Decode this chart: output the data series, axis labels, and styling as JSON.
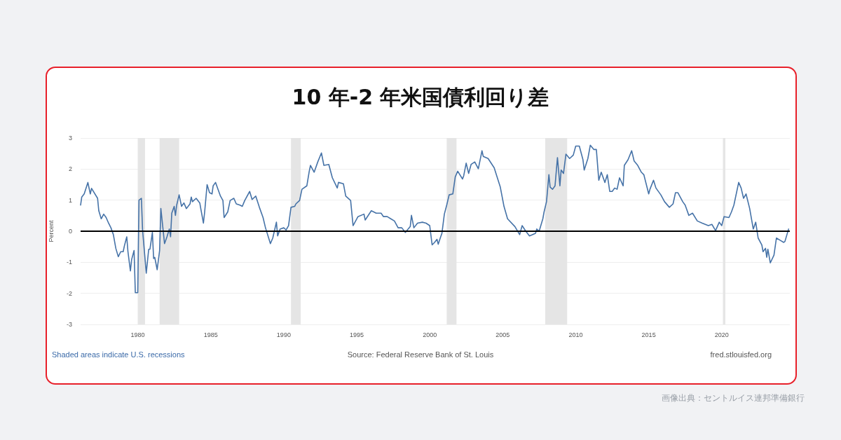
{
  "chart_data": {
    "type": "line",
    "title": "10 年-2 年米国債利回り差",
    "ylabel": "Percent",
    "annotations": [
      "Shaded areas indicate U.S. recessions",
      "Source: Federal Reserve Bank of St. Louis",
      "fred.stlouisfed.org",
      "画像出典：セントルイス連邦準備銀行"
    ],
    "x": [
      "1976-02",
      "1976-03",
      "1976-05",
      "1976-08",
      "1976-10",
      "1976-11",
      "1977-04",
      "1977-05",
      "1977-07",
      "1977-09",
      "1977-11",
      "1978-01",
      "1978-03",
      "1978-05",
      "1978-07",
      "1978-09",
      "1978-11",
      "1979-01",
      "1979-02",
      "1979-04",
      "1979-05",
      "1979-07",
      "1979-08",
      "1979-10",
      "1979-11",
      "1980-01",
      "1980-02",
      "1980-04",
      "1980-05",
      "1980-08",
      "1980-10",
      "1980-11",
      "1981-01",
      "1981-02",
      "1981-03",
      "1981-05",
      "1981-07",
      "1981-08",
      "1981-11",
      "1982-01",
      "1982-03",
      "1982-04",
      "1982-05",
      "1982-07",
      "1982-08",
      "1982-09",
      "1982-11",
      "1983-01",
      "1983-03",
      "1983-05",
      "1983-08",
      "1983-09",
      "1983-10",
      "1984-01",
      "1984-04",
      "1984-05",
      "1984-07",
      "1984-08",
      "1984-10",
      "1984-12",
      "1985-02",
      "1985-03",
      "1985-05",
      "1985-07",
      "1985-09",
      "1985-11",
      "1985-12",
      "1986-03",
      "1986-05",
      "1986-08",
      "1986-10",
      "1987-01",
      "1987-03",
      "1987-05",
      "1987-09",
      "1987-11",
      "1988-02",
      "1988-05",
      "1988-08",
      "1988-10",
      "1989-02",
      "1989-04",
      "1989-07",
      "1989-08",
      "1989-10",
      "1990-01",
      "1990-03",
      "1990-05",
      "1990-07",
      "1990-10",
      "1990-11",
      "1991-02",
      "1991-04",
      "1991-08",
      "1991-10",
      "1991-11",
      "1992-02",
      "1992-05",
      "1992-08",
      "1992-10",
      "1993-02",
      "1993-05",
      "1993-09",
      "1993-10",
      "1994-02",
      "1994-04",
      "1994-08",
      "1994-10",
      "1995-02",
      "1995-07",
      "1995-08",
      "1996-01",
      "1996-05",
      "1996-09",
      "1996-11",
      "1997-02",
      "1997-05",
      "1997-08",
      "1997-11",
      "1998-02",
      "1998-05",
      "1998-09",
      "1998-10",
      "1998-12",
      "1999-03",
      "1999-07",
      "1999-10",
      "2000-01",
      "2000-03",
      "2000-05",
      "2000-07",
      "2000-08",
      "2000-10",
      "2000-11",
      "2001-01",
      "2001-03",
      "2001-05",
      "2001-08",
      "2001-10",
      "2001-12",
      "2002-04",
      "2002-05",
      "2002-07",
      "2002-09",
      "2002-11",
      "2003-02",
      "2003-05",
      "2003-08",
      "2003-09",
      "2004-01",
      "2004-06",
      "2004-11",
      "2005-02",
      "2005-05",
      "2005-11",
      "2006-03",
      "2006-05",
      "2006-08",
      "2006-11",
      "2007-04",
      "2007-05",
      "2007-07",
      "2007-10",
      "2007-11",
      "2008-01",
      "2008-03",
      "2008-04",
      "2008-06",
      "2008-08",
      "2008-10",
      "2008-12",
      "2009-01",
      "2009-03",
      "2009-05",
      "2009-08",
      "2009-11",
      "2010-01",
      "2010-04",
      "2010-07",
      "2010-08",
      "2010-11",
      "2011-01",
      "2011-04",
      "2011-06",
      "2011-08",
      "2011-10",
      "2012-01",
      "2012-03",
      "2012-05",
      "2012-07",
      "2012-09",
      "2012-11",
      "2013-01",
      "2013-04",
      "2013-05",
      "2013-08",
      "2013-11",
      "2014-01",
      "2014-04",
      "2014-07",
      "2014-09",
      "2015-01",
      "2015-02",
      "2015-05",
      "2015-07",
      "2015-11",
      "2016-02",
      "2016-06",
      "2016-09",
      "2016-11",
      "2017-01",
      "2017-05",
      "2017-07",
      "2017-10",
      "2018-01",
      "2018-05",
      "2018-09",
      "2019-02",
      "2019-05",
      "2019-08",
      "2019-11",
      "2020-01",
      "2020-03",
      "2020-07",
      "2020-09",
      "2020-11",
      "2021-03",
      "2021-05",
      "2021-07",
      "2021-09",
      "2021-12",
      "2022-03",
      "2022-05",
      "2022-07",
      "2022-10",
      "2022-11",
      "2023-01",
      "2023-02",
      "2023-03",
      "2023-05",
      "2023-08",
      "2023-10",
      "2024-01",
      "2024-04",
      "2024-05",
      "2024-08"
    ],
    "series": [
      {
        "color": "#4572a7",
        "values": [
          0.84,
          1.1,
          1.2,
          1.57,
          1.2,
          1.38,
          1.06,
          0.66,
          0.4,
          0.55,
          0.44,
          0.26,
          0.11,
          -0.11,
          -0.55,
          -0.82,
          -0.66,
          -0.66,
          -0.47,
          -0.18,
          -0.66,
          -1.28,
          -0.91,
          -0.62,
          -1.98,
          -1.98,
          1.0,
          1.06,
          0.03,
          -1.35,
          -0.58,
          -0.58,
          -0.04,
          -0.88,
          -0.84,
          -1.24,
          -0.62,
          0.73,
          -0.4,
          -0.18,
          0.07,
          -0.18,
          0.58,
          0.8,
          0.51,
          0.84,
          1.17,
          0.8,
          0.91,
          0.73,
          0.88,
          1.1,
          0.95,
          1.06,
          0.91,
          0.69,
          0.26,
          0.62,
          1.5,
          1.24,
          1.2,
          1.46,
          1.57,
          1.35,
          1.13,
          0.99,
          0.44,
          0.62,
          0.99,
          1.06,
          0.88,
          0.84,
          0.8,
          0.99,
          1.28,
          1.02,
          1.13,
          0.77,
          0.44,
          0.11,
          -0.4,
          -0.22,
          0.29,
          -0.15,
          0.07,
          0.11,
          0.04,
          0.18,
          0.77,
          0.8,
          0.88,
          0.99,
          1.35,
          1.46,
          1.93,
          2.12,
          1.9,
          2.23,
          2.52,
          2.12,
          2.15,
          1.72,
          1.39,
          1.57,
          1.53,
          1.13,
          0.99,
          0.18,
          0.47,
          0.55,
          0.36,
          0.66,
          0.58,
          0.58,
          0.47,
          0.47,
          0.4,
          0.33,
          0.11,
          0.11,
          -0.04,
          0.15,
          0.51,
          0.11,
          0.26,
          0.29,
          0.26,
          0.18,
          -0.44,
          -0.36,
          -0.26,
          -0.42,
          -0.18,
          -0.07,
          0.55,
          0.84,
          1.17,
          1.2,
          1.75,
          1.93,
          1.68,
          1.79,
          2.19,
          1.86,
          2.15,
          2.23,
          2.01,
          2.59,
          2.41,
          2.34,
          2.04,
          1.42,
          0.8,
          0.4,
          0.15,
          -0.11,
          0.18,
          0.0,
          -0.15,
          -0.07,
          0.07,
          0.0,
          0.4,
          0.62,
          0.95,
          1.82,
          1.42,
          1.35,
          1.46,
          2.37,
          1.46,
          1.97,
          1.86,
          2.48,
          2.34,
          2.45,
          2.74,
          2.74,
          2.3,
          1.97,
          2.34,
          2.77,
          2.63,
          2.63,
          1.64,
          1.9,
          1.57,
          1.82,
          1.28,
          1.28,
          1.39,
          1.35,
          1.72,
          1.46,
          2.12,
          2.3,
          2.59,
          2.26,
          2.12,
          1.9,
          1.82,
          1.2,
          1.35,
          1.64,
          1.39,
          1.17,
          0.95,
          0.77,
          0.88,
          1.24,
          1.24,
          0.95,
          0.84,
          0.51,
          0.58,
          0.33,
          0.26,
          0.18,
          0.22,
          0.02,
          0.29,
          0.18,
          0.47,
          0.44,
          0.62,
          0.84,
          1.57,
          1.39,
          1.06,
          1.2,
          0.73,
          0.07,
          0.29,
          -0.22,
          -0.44,
          -0.66,
          -0.55,
          -0.84,
          -0.58,
          -1.02,
          -0.77,
          -0.22,
          -0.29,
          -0.36,
          -0.33,
          0.07
        ]
      }
    ],
    "xlim": [
      "1976-02",
      "2024-09"
    ],
    "xticks": [
      "1980",
      "1985",
      "1990",
      "1995",
      "2000",
      "2005",
      "2010",
      "2015",
      "2020"
    ],
    "ylim": [
      -3,
      3
    ],
    "yticks": [
      -3,
      -2,
      -1,
      0,
      1,
      2,
      3
    ],
    "grid": "y",
    "marker": "none",
    "line_style": "solid",
    "ref_lines": [
      {
        "axis": "y",
        "value": 0,
        "color": "#000000"
      }
    ],
    "bands": [
      {
        "axis": "x",
        "from": "1980-01",
        "to": "1980-07",
        "color": "#e5e5e5"
      },
      {
        "axis": "x",
        "from": "1981-07",
        "to": "1982-11",
        "color": "#e5e5e5"
      },
      {
        "axis": "x",
        "from": "1990-07",
        "to": "1991-03",
        "color": "#e5e5e5"
      },
      {
        "axis": "x",
        "from": "2001-03",
        "to": "2001-11",
        "color": "#e5e5e5"
      },
      {
        "axis": "x",
        "from": "2007-12",
        "to": "2009-06",
        "color": "#e5e5e5"
      },
      {
        "axis": "x",
        "from": "2020-02",
        "to": "2020-04",
        "color": "#e5e5e5"
      }
    ]
  }
}
